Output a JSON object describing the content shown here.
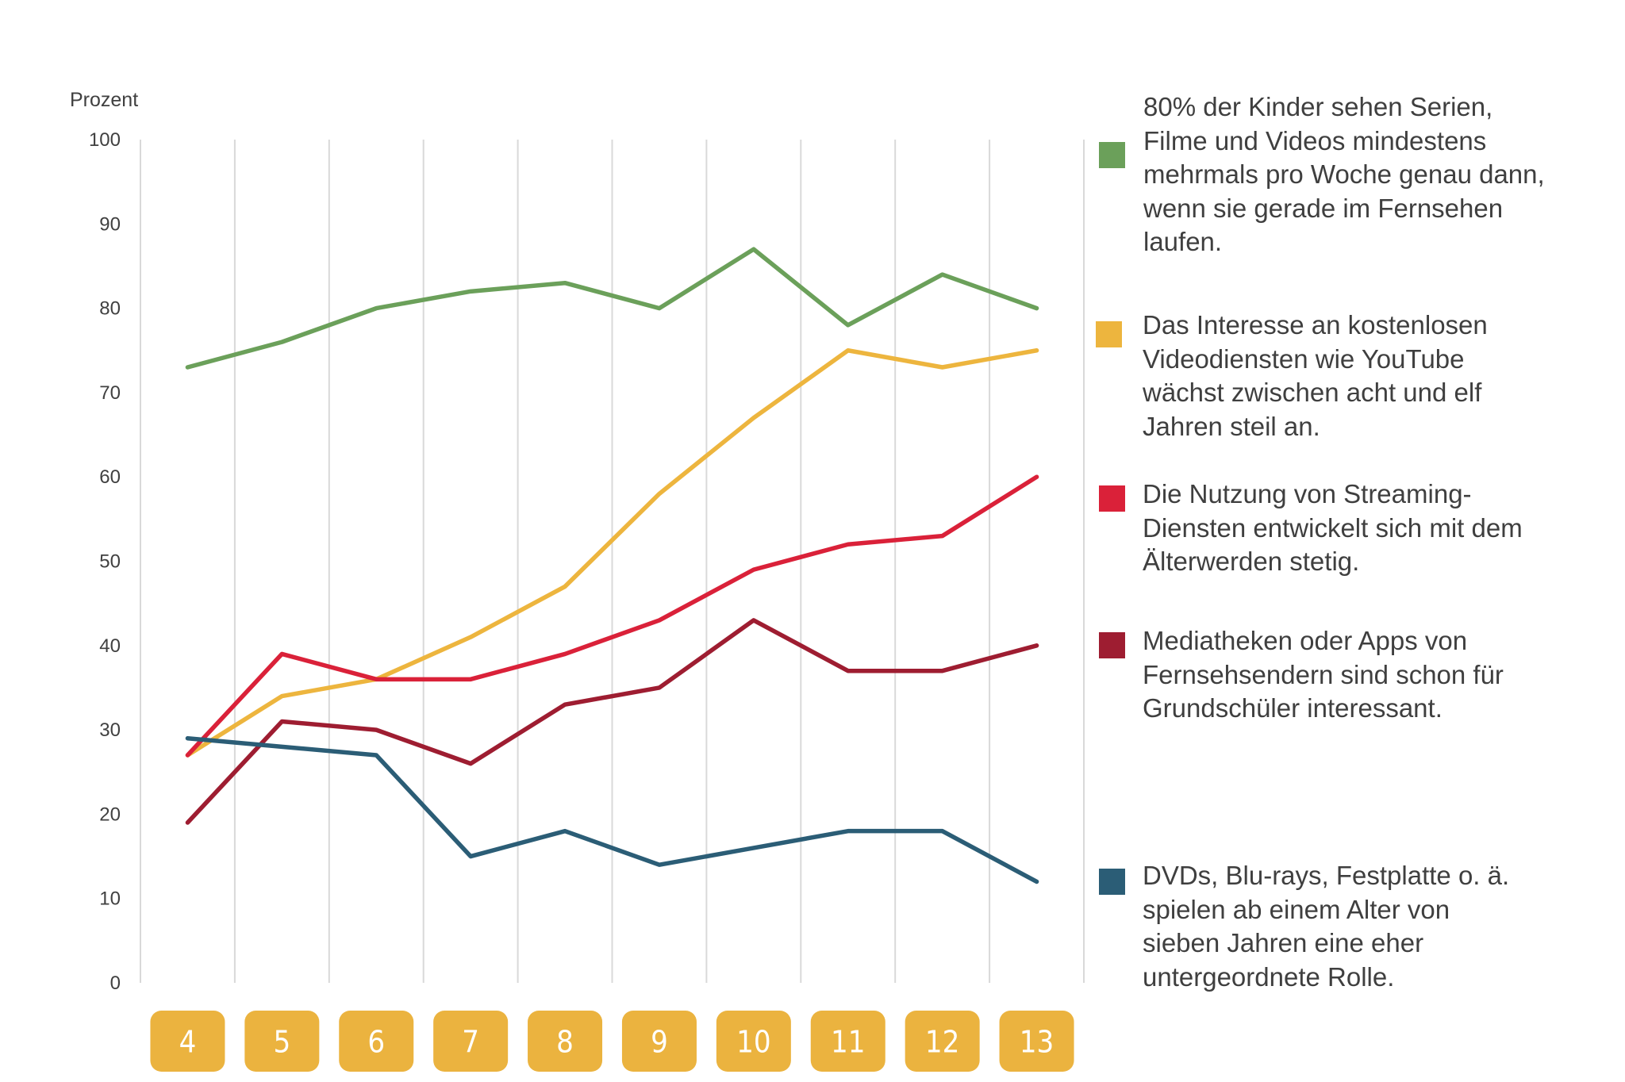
{
  "chart_data": {
    "type": "line",
    "title": "",
    "ylabel": "Prozent",
    "xlabel": "",
    "ylim": [
      0,
      100
    ],
    "yticks": [
      0,
      10,
      20,
      30,
      40,
      50,
      60,
      70,
      80,
      90,
      100
    ],
    "categories": [
      "4",
      "5",
      "6",
      "7",
      "8",
      "9",
      "10",
      "11",
      "12",
      "13"
    ],
    "grid": "vertical",
    "legend_position": "right",
    "x_tick_style": "badge",
    "x_badge_color": "#EBB33F",
    "series": [
      {
        "name": "80% der Kinder sehen Serien, Filme und Videos mindestens mehrmals pro Woche genau dann, wenn sie gerade im Fernsehen laufen.",
        "color": "#6BA05A",
        "values": [
          73,
          76,
          80,
          82,
          83,
          80,
          87,
          78,
          84,
          80
        ]
      },
      {
        "name": "Das Interesse an kostenlosen Videodiensten wie YouTube wächst zwischen acht und elf Jahren steil an.",
        "color": "#EDB53E",
        "values": [
          27,
          34,
          36,
          41,
          47,
          58,
          67,
          75,
          73,
          75
        ]
      },
      {
        "name": "Die Nutzung von Streaming-Diensten entwickelt sich mit dem Älterwerden stetig.",
        "color": "#DA2139",
        "values": [
          27,
          39,
          36,
          36,
          39,
          43,
          49,
          52,
          53,
          60
        ]
      },
      {
        "name": "Mediatheken oder Apps von Fernsehsendern sind schon für Grundschüler interessant.",
        "color": "#9E1D31",
        "values": [
          19,
          31,
          30,
          26,
          33,
          35,
          43,
          37,
          37,
          40
        ]
      },
      {
        "name": "DVDs, Blu-rays, Festplatte o. ä. spielen ab einem Alter von sieben Jahren eine eher untergeordnete Rolle.",
        "color": "#2B5D76",
        "values": [
          29,
          28,
          27,
          15,
          18,
          14,
          16,
          18,
          18,
          12
        ]
      }
    ]
  },
  "legend": [
    {
      "text": "80% der Kinder sehen Serien,\nFilme und Videos mindestens\nmehrmals pro Woche genau dann,\nwenn sie gerade im Fernsehen\nlaufen."
    },
    {
      "text": "Das Interesse an kostenlosen\nVideodiensten wie YouTube\nwächst zwischen acht und elf\nJahren steil an."
    },
    {
      "text": "Die Nutzung von Streaming-\nDiensten entwickelt sich mit dem\nÄlterwerden stetig."
    },
    {
      "text": "Mediatheken oder Apps von\nFernsehsendern sind schon für\nGrundschüler interessant."
    },
    {
      "text": "DVDs, Blu-rays, Festplatte o. ä.\nspielen ab einem Alter von\nsieben Jahren eine eher\nuntergeordnete Rolle."
    }
  ]
}
